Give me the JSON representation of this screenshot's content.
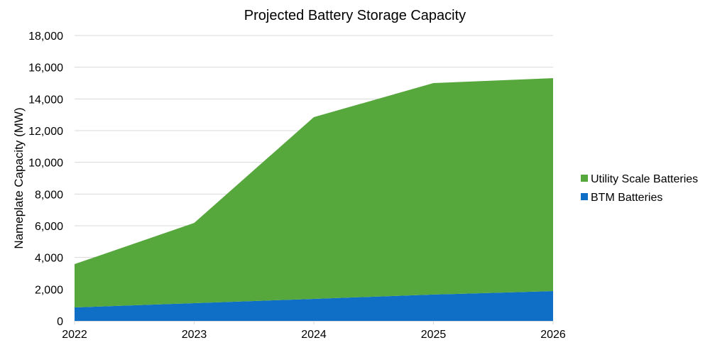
{
  "chart_data": {
    "type": "area",
    "stacked": true,
    "title": "Projected Battery Storage Capacity",
    "xlabel": "",
    "ylabel": "Nameplate Capacity (MW)",
    "x": [
      "2022",
      "2023",
      "2024",
      "2025",
      "2026"
    ],
    "ylim": [
      0,
      18000
    ],
    "yticks": [
      0,
      2000,
      4000,
      6000,
      8000,
      10000,
      12000,
      14000,
      16000,
      18000
    ],
    "ytick_labels": [
      "0",
      "2,000",
      "4,000",
      "6,000",
      "8,000",
      "10,000",
      "12,000",
      "14,000",
      "16,000",
      "18,000"
    ],
    "grid": true,
    "legend_position": "right",
    "series": [
      {
        "name": "BTM Batteries",
        "color": "#0f6fc6",
        "values": [
          850,
          1120,
          1390,
          1660,
          1880
        ]
      },
      {
        "name": "Utility Scale Batteries",
        "color": "#56a73c",
        "values": [
          2730,
          5060,
          11460,
          13340,
          13430
        ]
      }
    ],
    "legend_order": [
      "Utility Scale Batteries",
      "BTM Batteries"
    ]
  }
}
